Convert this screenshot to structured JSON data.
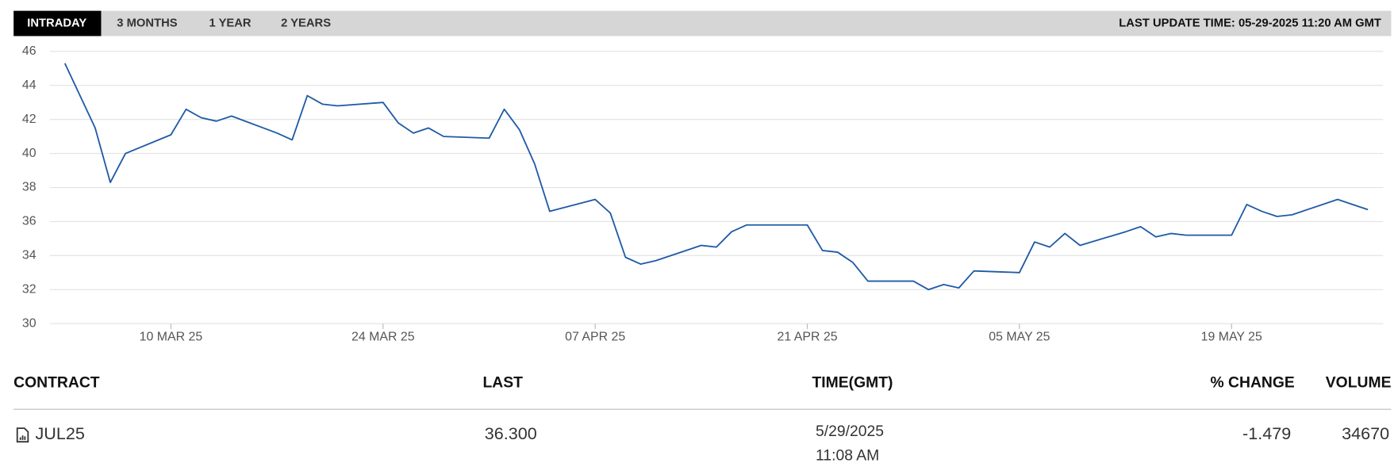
{
  "tabs": [
    "INTRADAY",
    "3 MONTHS",
    "1 YEAR",
    "2 YEARS"
  ],
  "last_update": "LAST UPDATE TIME: 05-29-2025 11:20 AM GMT",
  "chart_data": {
    "type": "line",
    "color": "#1f5aa6",
    "grid": true,
    "x": [
      "2025-03-03",
      "2025-03-04",
      "2025-03-05",
      "2025-03-06",
      "2025-03-07",
      "2025-03-10",
      "2025-03-11",
      "2025-03-12",
      "2025-03-13",
      "2025-03-14",
      "2025-03-17",
      "2025-03-18",
      "2025-03-19",
      "2025-03-20",
      "2025-03-21",
      "2025-03-24",
      "2025-03-25",
      "2025-03-26",
      "2025-03-27",
      "2025-03-28",
      "2025-03-31",
      "2025-04-01",
      "2025-04-02",
      "2025-04-03",
      "2025-04-04",
      "2025-04-07",
      "2025-04-08",
      "2025-04-09",
      "2025-04-10",
      "2025-04-11",
      "2025-04-14",
      "2025-04-15",
      "2025-04-16",
      "2025-04-17",
      "2025-04-21",
      "2025-04-22",
      "2025-04-23",
      "2025-04-24",
      "2025-04-25",
      "2025-04-28",
      "2025-04-29",
      "2025-04-30",
      "2025-05-01",
      "2025-05-02",
      "2025-05-05",
      "2025-05-06",
      "2025-05-07",
      "2025-05-08",
      "2025-05-09",
      "2025-05-12",
      "2025-05-13",
      "2025-05-14",
      "2025-05-15",
      "2025-05-16",
      "2025-05-19",
      "2025-05-20",
      "2025-05-21",
      "2025-05-22",
      "2025-05-23",
      "2025-05-26",
      "2025-05-27",
      "2025-05-28"
    ],
    "values": [
      45.3,
      43.4,
      41.5,
      38.3,
      40.0,
      41.1,
      42.6,
      42.1,
      41.9,
      42.2,
      41.2,
      40.8,
      43.4,
      42.9,
      42.8,
      43.0,
      41.8,
      41.2,
      41.5,
      41.0,
      40.9,
      42.6,
      41.4,
      39.4,
      36.6,
      37.3,
      36.5,
      33.9,
      33.5,
      33.7,
      34.6,
      34.5,
      35.4,
      35.8,
      35.8,
      34.3,
      34.2,
      33.6,
      32.5,
      32.5,
      32.0,
      32.3,
      32.1,
      33.1,
      33.0,
      34.8,
      34.5,
      35.3,
      34.6,
      35.4,
      35.7,
      35.1,
      35.3,
      35.2,
      35.2,
      37.0,
      36.6,
      36.3,
      36.4,
      37.3,
      37.0,
      36.7
    ],
    "xlim": [
      "2025-03-02",
      "2025-05-29"
    ],
    "xticks": [
      {
        "value": "2025-03-10",
        "label": "10 MAR 25"
      },
      {
        "value": "2025-03-24",
        "label": "24 MAR 25"
      },
      {
        "value": "2025-04-07",
        "label": "07 APR 25"
      },
      {
        "value": "2025-04-21",
        "label": "21 APR 25"
      },
      {
        "value": "2025-05-05",
        "label": "05 MAY 25"
      },
      {
        "value": "2025-05-19",
        "label": "19 MAY 25"
      }
    ],
    "ylim": [
      30,
      46
    ],
    "yticks": [
      30,
      32,
      34,
      36,
      38,
      40,
      42,
      44,
      46
    ]
  },
  "table": {
    "headers": [
      "CONTRACT",
      "LAST",
      "TIME(GMT)",
      "% CHANGE",
      "VOLUME"
    ],
    "rows": [
      [
        "JUL25",
        "36.300",
        [
          "5/29/2025",
          "11:08 AM"
        ],
        "-1.479",
        "34670"
      ]
    ]
  }
}
